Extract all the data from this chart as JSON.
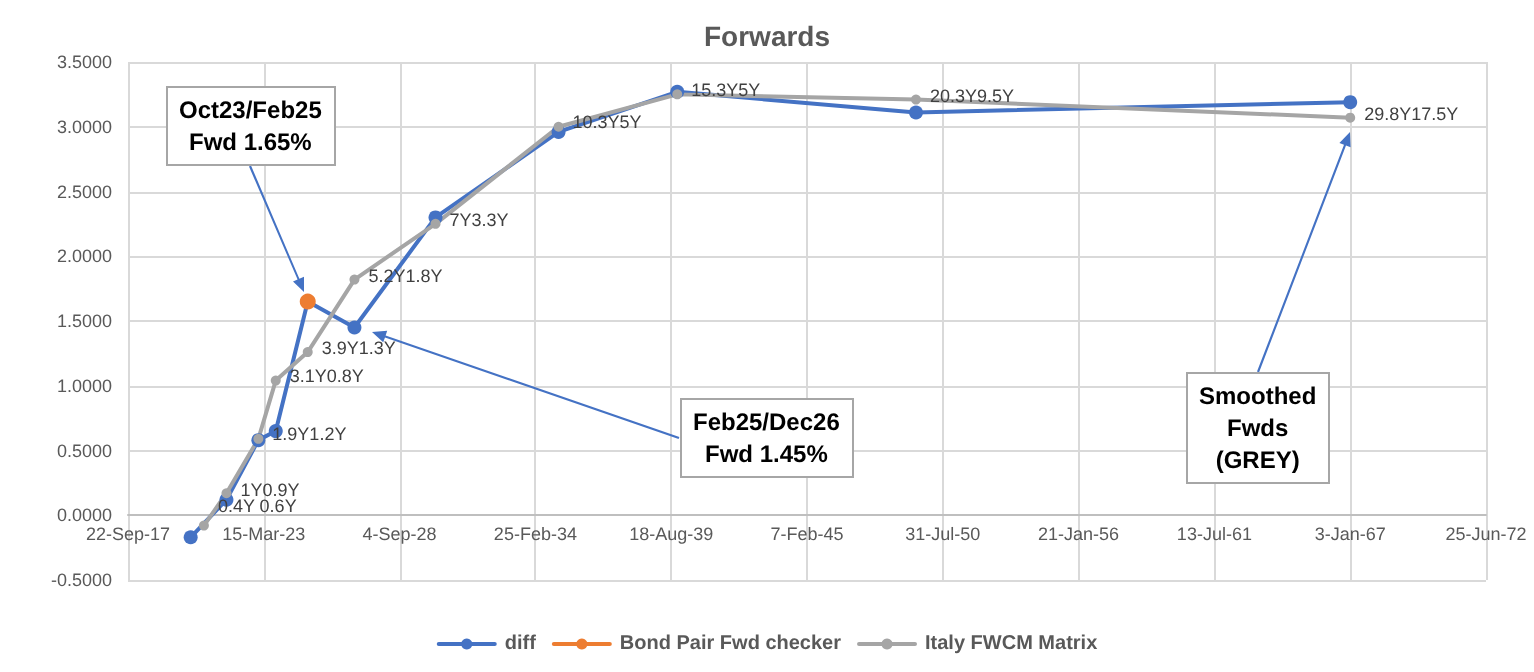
{
  "chart_data": {
    "type": "line",
    "title": "Forwards",
    "xlim": [
      "2017-09-22",
      "2072-06-25"
    ],
    "xticks": [
      {
        "value": "2017-09-22",
        "label": "22-Sep-17"
      },
      {
        "value": "2023-03-15",
        "label": "15-Mar-23"
      },
      {
        "value": "2028-09-04",
        "label": "4-Sep-28"
      },
      {
        "value": "2034-02-25",
        "label": "25-Feb-34"
      },
      {
        "value": "2039-08-18",
        "label": "18-Aug-39"
      },
      {
        "value": "2045-02-07",
        "label": "7-Feb-45"
      },
      {
        "value": "2050-07-31",
        "label": "31-Jul-50"
      },
      {
        "value": "2056-01-21",
        "label": "21-Jan-56"
      },
      {
        "value": "2061-07-13",
        "label": "13-Jul-61"
      },
      {
        "value": "2067-01-03",
        "label": "3-Jan-67"
      },
      {
        "value": "2072-06-25",
        "label": "25-Jun-72"
      }
    ],
    "ylim": [
      -0.5,
      3.5
    ],
    "yticks": [
      {
        "value": -0.5,
        "label": "-0.5000"
      },
      {
        "value": 0,
        "label": "0.0000"
      },
      {
        "value": 0.5,
        "label": "0.5000"
      },
      {
        "value": 1,
        "label": "1.0000"
      },
      {
        "value": 1.5,
        "label": "1.5000"
      },
      {
        "value": 2,
        "label": "2.0000"
      },
      {
        "value": 2.5,
        "label": "2.5000"
      },
      {
        "value": 3,
        "label": "3.0000"
      },
      {
        "value": 3.5,
        "label": "3.5000"
      }
    ],
    "series": [
      {
        "name": "diff",
        "color": "#4472c4",
        "x": [
          "2020-04-02",
          "2021-09-11",
          "2022-12-25",
          "2023-09-07",
          "2024-12-21",
          "2026-11-09",
          "2030-02-15",
          "2035-02-01",
          "2039-11-15",
          "2049-07-01",
          "2067-01-03"
        ],
        "values": [
          -0.17,
          0.12,
          0.58,
          0.65,
          1.65,
          1.45,
          2.3,
          2.96,
          3.27,
          3.11,
          3.19
        ]
      },
      {
        "name": "Bond Pair Fwd checker",
        "color": "#ed7d31",
        "x": [
          "2024-12-21"
        ],
        "values": [
          1.65
        ]
      },
      {
        "name": "Italy FWCM Matrix",
        "color": "#a5a5a5",
        "x": [
          "2020-10-14",
          "2021-09-11",
          "2022-12-25",
          "2023-09-07",
          "2024-12-21",
          "2026-11-09",
          "2030-02-15",
          "2035-02-01",
          "2039-11-15",
          "2049-07-01",
          "2067-01-03"
        ],
        "values": [
          -0.08,
          0.17,
          0.59,
          1.04,
          1.26,
          1.82,
          2.25,
          3.0,
          3.25,
          3.21,
          3.07
        ]
      }
    ],
    "annotations": [
      "Oct23/Feb25\nFwd 1.65%",
      "Feb25/Dec26\nFwd 1.45%",
      "Smoothed\nFwds\n(GREY)",
      {
        "text": "0.4Y 0.6Y",
        "x": "2020-10-14",
        "y": -0.08
      },
      {
        "text": "1Y0.9Y",
        "x": "2021-09-11",
        "y": 0.17
      },
      {
        "text": "1.9Y1.2Y",
        "x": "2022-12-25",
        "y": 0.59
      },
      {
        "text": "3.1Y0.8Y",
        "x": "2023-09-07",
        "y": 1.04
      },
      {
        "text": "3.9Y1.3Y",
        "x": "2024-12-21",
        "y": 1.26
      },
      {
        "text": "5.2Y1.8Y",
        "x": "2026-11-09",
        "y": 1.82
      },
      {
        "text": "7Y3.3Y",
        "x": "2030-02-15",
        "y": 2.25
      },
      {
        "text": "10.3Y5Y",
        "x": "2035-02-01",
        "y": 3.0
      },
      {
        "text": "15.3Y5Y",
        "x": "2039-11-15",
        "y": 3.25
      },
      {
        "text": "20.3Y9.5Y",
        "x": "2049-07-01",
        "y": 3.21
      },
      {
        "text": "29.8Y17.5Y",
        "x": "2067-01-03",
        "y": 3.07
      }
    ],
    "grid": true,
    "legend": "bottom",
    "marker": "circle",
    "line_style": "solid"
  }
}
